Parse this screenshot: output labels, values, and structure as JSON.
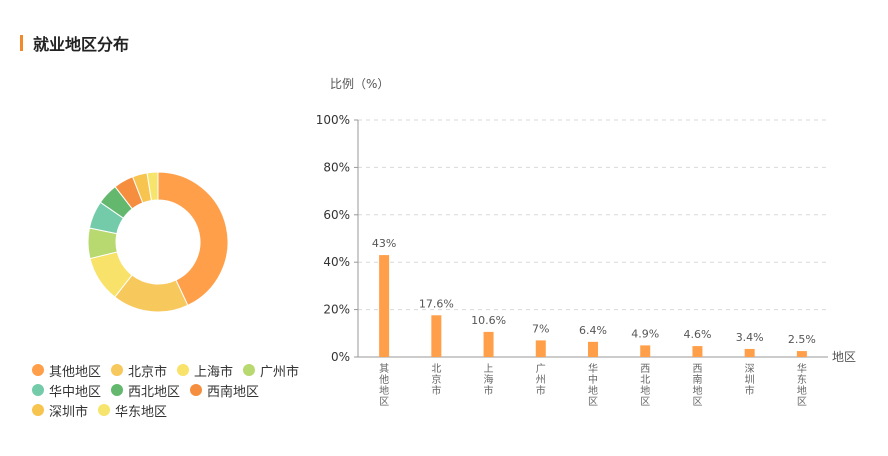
{
  "page": {
    "title": "就业地区分布"
  },
  "colors": {
    "accent": "#f08a2a",
    "bar": "#ff9f4a",
    "axis": "#999999",
    "grid": "#d9d9d9"
  },
  "chart_data": [
    {
      "type": "pie",
      "style": "donut",
      "categories": [
        "其他地区",
        "北京市",
        "上海市",
        "广州市",
        "华中地区",
        "西北地区",
        "西南地区",
        "深圳市",
        "华东地区"
      ],
      "values": [
        43,
        17.6,
        10.6,
        7,
        6.4,
        4.9,
        4.6,
        3.4,
        2.5
      ],
      "colors": [
        "#ff9f4a",
        "#f7c85c",
        "#f9e26a",
        "#b7d96f",
        "#74cba9",
        "#63b86e",
        "#f58f3f",
        "#f6c44f",
        "#f6e46d"
      ],
      "legend_placement": "bottom"
    },
    {
      "type": "bar",
      "categories": [
        "其他地区",
        "北京市",
        "上海市",
        "广州市",
        "华中地区",
        "西北地区",
        "西南地区",
        "深圳市",
        "华东地区"
      ],
      "values": [
        43,
        17.6,
        10.6,
        7,
        6.4,
        4.9,
        4.6,
        3.4,
        2.5
      ],
      "data_labels": [
        "43%",
        "17.6%",
        "10.6%",
        "7%",
        "6.4%",
        "4.9%",
        "4.6%",
        "3.4%",
        "2.5%"
      ],
      "ylabel": "比例（%）",
      "xlabel": "地区",
      "ylim": [
        0,
        100
      ],
      "yticks": [
        "0%",
        "20%",
        "40%",
        "60%",
        "80%",
        "100%"
      ],
      "grid": true
    }
  ]
}
